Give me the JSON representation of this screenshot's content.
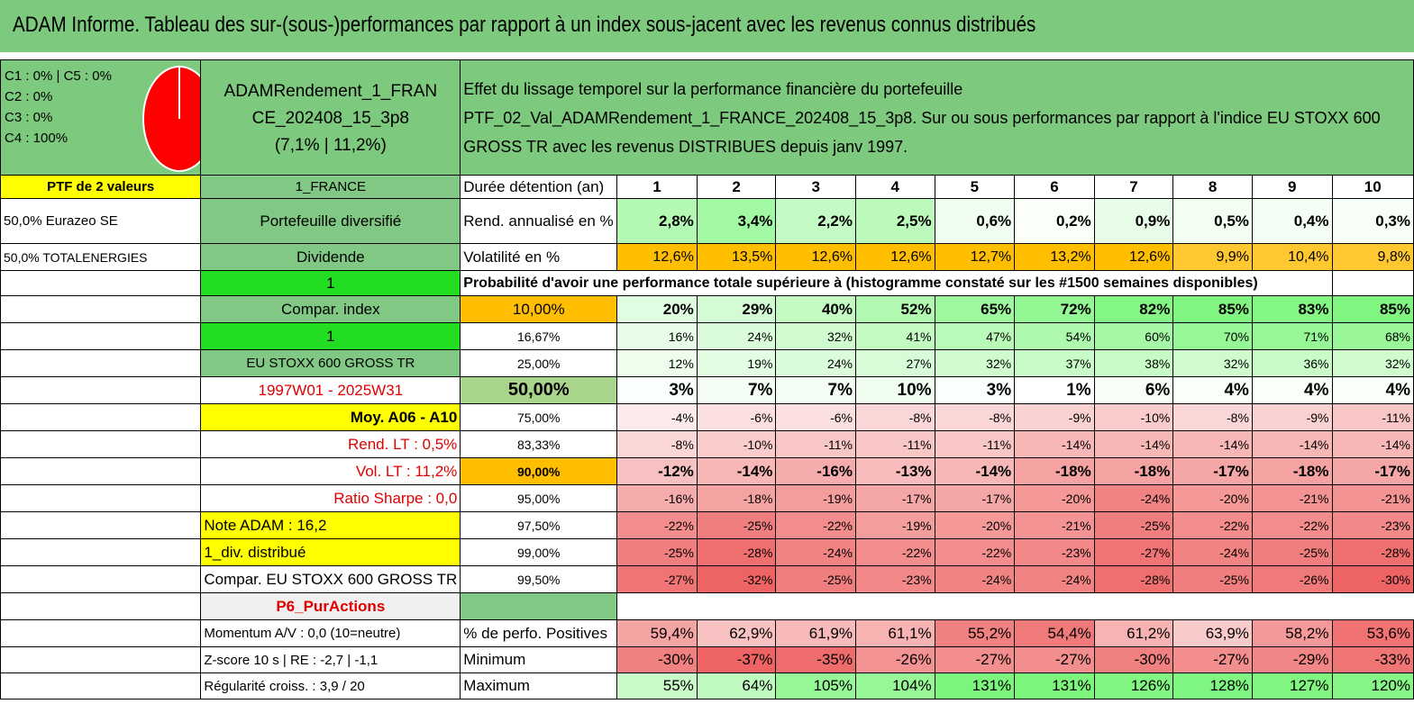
{
  "title": "ADAM Informe. Tableau des sur-(sous-)performances par rapport à un index sous-jacent avec les revenus connus distribués",
  "pie": {
    "labels": [
      "C1 : 0% | C5 : 0%",
      "C2 : 0%",
      "C3 : 0%",
      "C4 : 100%"
    ],
    "color": "#ff0000"
  },
  "portfolio": {
    "name_line1": "ADAMRendement_1_FRAN",
    "name_line2": "CE_202408_15_3p8",
    "name_line3": "(7,1% | 11,2%)",
    "description_line1": "Effet du lissage temporel sur la performance financière du portefeuille",
    "description_line2": "PTF_02_Val_ADAMRendement_1_FRANCE_202408_15_3p8. Sur ou sous performances par rapport à l'indice EU STOXX 600",
    "description_line3": "GROSS TR avec les revenus DISTRIBUES depuis janv 1997."
  },
  "left_col": [
    "PTF de 2 valeurs",
    "50,0% Eurazeo SE",
    "50,0% TOTALENERGIES"
  ],
  "mid_col": {
    "b1": "1_FRANCE",
    "b2": "Portefeuille diversifié",
    "b3": "Dividende",
    "b4": "1",
    "b5": "Compar. index",
    "b6": "1",
    "b7": "EU STOXX 600 GROSS TR",
    "b8": "1997W01 - 2025W31",
    "b9": "Moy. A06 - A10",
    "b10": "Rend. LT : 0,5%",
    "b11": "Vol. LT : 11,2%",
    "b12": "Ratio Sharpe : 0,0",
    "b13": "Note ADAM : 16,2",
    "b14": "1_div. distribué",
    "b15": "Compar. EU STOXX 600 GROSS TR",
    "b16": "P6_PurActions",
    "b17": "Momentum A/V : 0,0 (10=neutre)",
    "b18": "Z-score 10 s | RE : -2,7 | -1,1",
    "b19": "Régularité croiss. : 3,9 / 20"
  },
  "labels": {
    "duration": "Durée détention (an)",
    "rend": "Rend. annualisé en %",
    "vol": "Volatilité en %",
    "proba": "Probabilité d'avoir une performance totale supérieure à (histogramme constaté sur les #1500 semaines disponibles)",
    "positives": "% de perfo. Positives",
    "minimum": "Minimum",
    "maximum": "Maximum"
  },
  "years": [
    "1",
    "2",
    "3",
    "4",
    "5",
    "6",
    "7",
    "8",
    "9",
    "10"
  ],
  "rend": [
    "2,8%",
    "3,4%",
    "2,2%",
    "2,5%",
    "0,6%",
    "0,2%",
    "0,9%",
    "0,5%",
    "0,4%",
    "0,3%"
  ],
  "vol": [
    "12,6%",
    "13,5%",
    "12,6%",
    "12,6%",
    "12,7%",
    "13,2%",
    "12,6%",
    "9,9%",
    "10,4%",
    "9,8%"
  ],
  "quantiles": [
    {
      "q": "10,00%",
      "v": [
        "20%",
        "29%",
        "40%",
        "52%",
        "65%",
        "72%",
        "82%",
        "85%",
        "83%",
        "85%"
      ]
    },
    {
      "q": "16,67%",
      "v": [
        "16%",
        "24%",
        "32%",
        "41%",
        "47%",
        "54%",
        "60%",
        "70%",
        "71%",
        "68%"
      ]
    },
    {
      "q": "25,00%",
      "v": [
        "12%",
        "19%",
        "24%",
        "27%",
        "32%",
        "37%",
        "38%",
        "32%",
        "36%",
        "32%"
      ]
    },
    {
      "q": "50,00%",
      "v": [
        "3%",
        "7%",
        "7%",
        "10%",
        "3%",
        "1%",
        "6%",
        "4%",
        "4%",
        "4%"
      ]
    },
    {
      "q": "75,00%",
      "v": [
        "-4%",
        "-6%",
        "-6%",
        "-8%",
        "-8%",
        "-9%",
        "-10%",
        "-8%",
        "-9%",
        "-11%"
      ]
    },
    {
      "q": "83,33%",
      "v": [
        "-8%",
        "-10%",
        "-11%",
        "-11%",
        "-11%",
        "-14%",
        "-14%",
        "-14%",
        "-14%",
        "-14%"
      ]
    },
    {
      "q": "90,00%",
      "v": [
        "-12%",
        "-14%",
        "-16%",
        "-13%",
        "-14%",
        "-18%",
        "-18%",
        "-17%",
        "-18%",
        "-17%"
      ]
    },
    {
      "q": "95,00%",
      "v": [
        "-16%",
        "-18%",
        "-19%",
        "-17%",
        "-17%",
        "-20%",
        "-24%",
        "-20%",
        "-21%",
        "-21%"
      ]
    },
    {
      "q": "97,50%",
      "v": [
        "-22%",
        "-25%",
        "-22%",
        "-19%",
        "-20%",
        "-21%",
        "-25%",
        "-22%",
        "-22%",
        "-23%"
      ]
    },
    {
      "q": "99,00%",
      "v": [
        "-25%",
        "-28%",
        "-24%",
        "-22%",
        "-22%",
        "-23%",
        "-27%",
        "-24%",
        "-25%",
        "-28%"
      ]
    },
    {
      "q": "99,50%",
      "v": [
        "-27%",
        "-32%",
        "-25%",
        "-23%",
        "-24%",
        "-24%",
        "-28%",
        "-25%",
        "-26%",
        "-30%"
      ]
    }
  ],
  "positives": [
    "59,4%",
    "62,9%",
    "61,9%",
    "61,1%",
    "55,2%",
    "54,4%",
    "61,2%",
    "63,9%",
    "58,2%",
    "53,6%"
  ],
  "minimum": [
    "-30%",
    "-37%",
    "-35%",
    "-26%",
    "-27%",
    "-27%",
    "-30%",
    "-27%",
    "-29%",
    "-33%"
  ],
  "maximum": [
    "55%",
    "64%",
    "105%",
    "104%",
    "131%",
    "131%",
    "126%",
    "128%",
    "127%",
    "120%"
  ]
}
